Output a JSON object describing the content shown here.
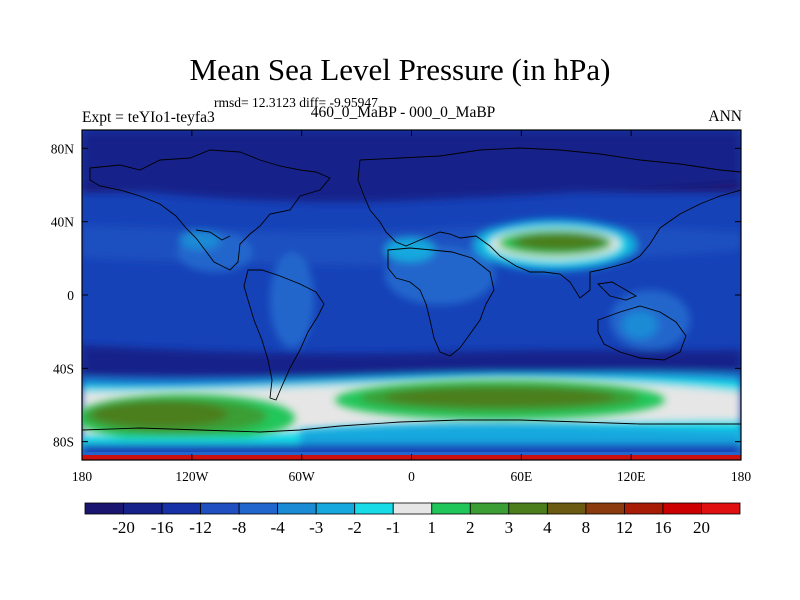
{
  "header": {
    "title": "Mean Sea Level Pressure (in hPa)",
    "stats": "rmsd= 12.3123 diff= -9.95947",
    "subtitle": "460_0_MaBP - 000_0_MaBP",
    "expt": "Expt = teYIo1-teyfa3",
    "season": "ANN"
  },
  "axes": {
    "lat_labels": [
      "80N",
      "40N",
      "0",
      "40S",
      "80S"
    ],
    "lat_values": [
      80,
      40,
      0,
      -40,
      -80
    ],
    "lon_labels": [
      "180",
      "120W",
      "60W",
      "0",
      "60E",
      "120E",
      "180"
    ],
    "lon_values": [
      -180,
      -120,
      -60,
      0,
      60,
      120,
      180
    ]
  },
  "colorbar": {
    "labels": [
      "-20",
      "-16",
      "-12",
      "-8",
      "-4",
      "-3",
      "-2",
      "-1",
      "1",
      "2",
      "3",
      "4",
      "8",
      "12",
      "16",
      "20"
    ],
    "colors": [
      "#1a1670",
      "#16218a",
      "#1632a6",
      "#1f4fc0",
      "#2166cc",
      "#1b8bd6",
      "#14a8de",
      "#17dce8",
      "#e6e6e6",
      "#21c65a",
      "#3a9e34",
      "#4c7e1c",
      "#6a5a12",
      "#8a3a0c",
      "#a81c06",
      "#cc0000",
      "#e01010"
    ]
  },
  "legend_colors": {
    "ocean_base": "#1642b8",
    "coast_line": "#000000"
  }
}
